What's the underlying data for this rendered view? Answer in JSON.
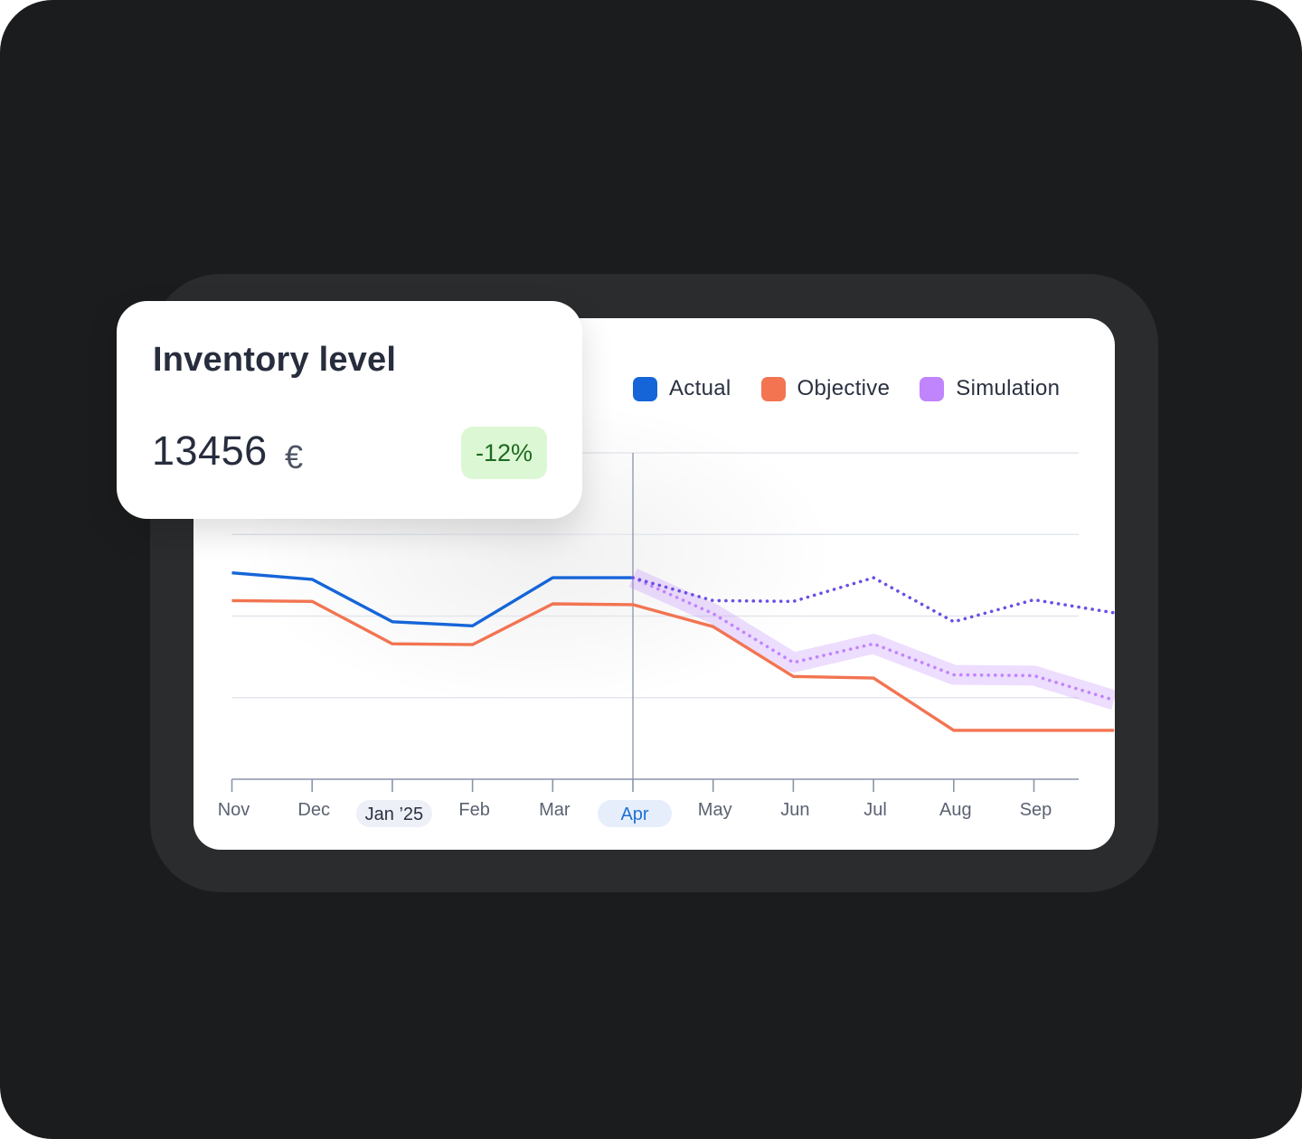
{
  "card": {
    "title": "Inventory level",
    "value": "13456",
    "unit": "€",
    "change": "-12%",
    "change_bg": "#dcf7d4",
    "change_color": "#1d6a20"
  },
  "colors": {
    "background": "#1b1c1e",
    "frame": "#2a2c2e",
    "axis": "#8a94a8",
    "grid": "#e3e6ec",
    "tick_label": "#5b6272",
    "highlight_label": "#1f6fd1"
  },
  "chart_data": {
    "type": "line",
    "title": "",
    "xlabel": "",
    "ylabel": "",
    "x": [
      "Nov",
      "Dec",
      "Jan ’25",
      "Feb",
      "Mar",
      "Apr",
      "May",
      "Jun",
      "Jul",
      "Aug",
      "Sep",
      ""
    ],
    "ylim": [
      0,
      4
    ],
    "grid": true,
    "legend_position": "top-right",
    "highlighted_x": [
      "Jan ’25",
      "Apr"
    ],
    "current_marker": "Apr",
    "series": [
      {
        "name": "Actual",
        "color": "#1565d8",
        "style": "solid",
        "values": [
          2.53,
          2.45,
          1.93,
          1.88,
          2.47,
          2.47,
          null,
          null,
          null,
          null,
          null,
          null
        ]
      },
      {
        "name": "Objective",
        "color": "#f27451",
        "style": "solid",
        "values": [
          2.19,
          2.18,
          1.66,
          1.65,
          2.15,
          2.14,
          1.87,
          1.26,
          1.24,
          0.6,
          0.6,
          0.6
        ]
      },
      {
        "name": "Simulation",
        "color": "#c084fc",
        "style": "dotted",
        "band": true,
        "values": [
          null,
          null,
          null,
          null,
          null,
          2.47,
          2.03,
          1.43,
          1.66,
          1.28,
          1.27,
          0.97
        ]
      },
      {
        "name": "",
        "color": "#6c4ee6",
        "style": "dotted",
        "values": [
          null,
          null,
          null,
          null,
          null,
          2.47,
          2.19,
          2.18,
          2.47,
          1.93,
          2.2,
          2.04
        ]
      }
    ]
  }
}
